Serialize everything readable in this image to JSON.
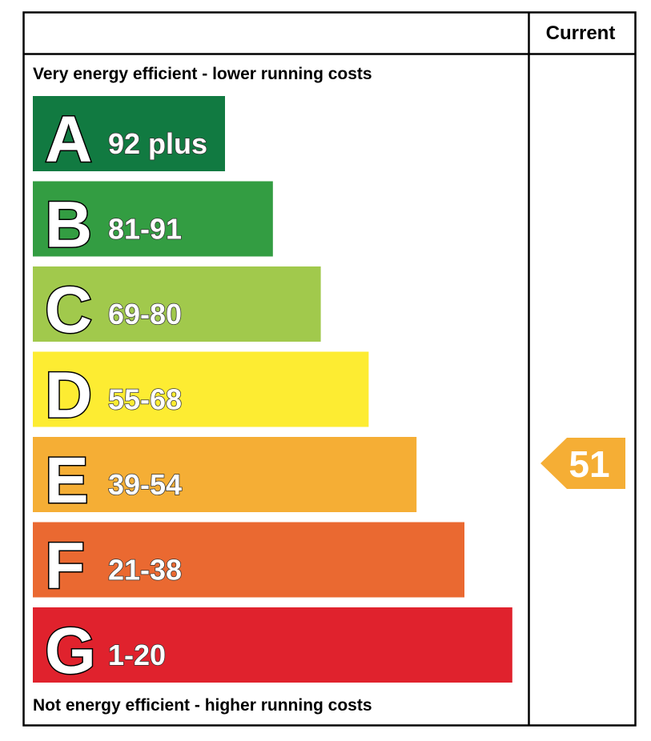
{
  "chart_data": {
    "type": "bar",
    "header": {
      "current_label": "Current"
    },
    "top_caption": "Very energy efficient - lower running costs",
    "bottom_caption": "Not energy efficient - higher running costs",
    "bands": [
      {
        "letter": "A",
        "range": "92 plus",
        "color": "#117a41"
      },
      {
        "letter": "B",
        "range": "81-91",
        "color": "#339d42"
      },
      {
        "letter": "C",
        "range": "69-80",
        "color": "#a1c94c"
      },
      {
        "letter": "D",
        "range": "55-68",
        "color": "#fdec32"
      },
      {
        "letter": "E",
        "range": "39-54",
        "color": "#f5ae35"
      },
      {
        "letter": "F",
        "range": "21-38",
        "color": "#ea6931"
      },
      {
        "letter": "G",
        "range": "1-20",
        "color": "#e0222d"
      }
    ],
    "current": {
      "value": "51",
      "band": "E",
      "color": "#f5ae35"
    }
  }
}
